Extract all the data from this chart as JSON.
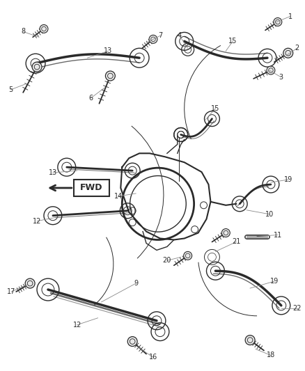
{
  "bg_color": "#ffffff",
  "line_color": "#2a2a2a",
  "fig_width": 4.38,
  "fig_height": 5.33,
  "dpi": 100,
  "label_fontsize": 7.0
}
